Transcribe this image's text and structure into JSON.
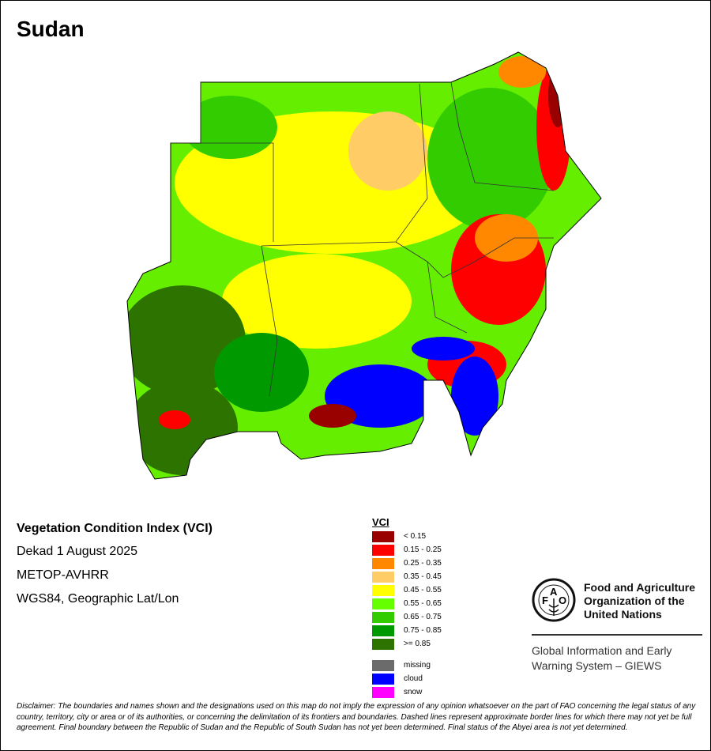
{
  "title": "Sudan",
  "info": {
    "index_name": "Vegetation Condition Index (VCI)",
    "period": "Dekad 1 August 2025",
    "sensor": "METOP-AVHRR",
    "projection": "WGS84, Geographic Lat/Lon"
  },
  "legend": {
    "title": "VCI",
    "classes": [
      {
        "label": "< 0.15",
        "color": "#990000"
      },
      {
        "label": "0.15 - 0.25",
        "color": "#ff0000"
      },
      {
        "label": "0.25 - 0.35",
        "color": "#ff8800"
      },
      {
        "label": "0.35 - 0.45",
        "color": "#ffcc66"
      },
      {
        "label": "0.45 - 0.55",
        "color": "#ffff00"
      },
      {
        "label": "0.55 - 0.65",
        "color": "#66ff00"
      },
      {
        "label": "0.65 - 0.75",
        "color": "#33cc00"
      },
      {
        "label": "0.75 - 0.85",
        "color": "#009900"
      },
      {
        "label": ">= 0.85",
        "color": "#2d7300"
      }
    ],
    "other": [
      {
        "label": "missing",
        "color": "#6b6b6b"
      },
      {
        "label": "cloud",
        "color": "#0000ff"
      },
      {
        "label": "snow",
        "color": "#ff00ff"
      }
    ]
  },
  "org": {
    "name_line1": "Food and Agriculture",
    "name_line2": "Organization of the",
    "name_line3": "United Nations",
    "system_line1": "Global Information and Early",
    "system_line2": "Warning System – GIEWS",
    "logo_text": "FAO FIAT PANIS"
  },
  "disclaimer": "Disclaimer: The boundaries and names shown and the designations used on this map do not imply the expression of any opinion whatsoever on the part of FAO concerning the legal status of any country, territory, city or area or of its authorities, or concerning the delimitation of its frontiers and boundaries. Dashed lines represent approximate border lines for which there may not yet be full agreement.  Final boundary between the Republic of Sudan and the Republic of South Sudan has not yet been determined. Final status of the Abyei area is not yet determined."
}
